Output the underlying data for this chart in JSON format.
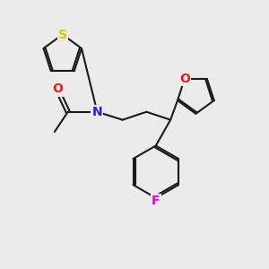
{
  "bg_color": "#ebebeb",
  "bond_color": "#1a1a1a",
  "N_color": "#2020dd",
  "O_color": "#dd2020",
  "S_color": "#cccc00",
  "F_color": "#dd00dd",
  "lw": 1.5,
  "figsize": [
    3.0,
    3.0
  ],
  "dpi": 100,
  "xlim": [
    0,
    10
  ],
  "ylim": [
    0,
    10
  ],
  "fontsize": 10
}
